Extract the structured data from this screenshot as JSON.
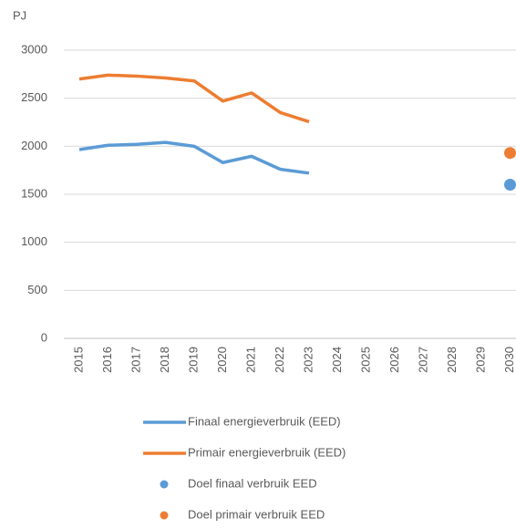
{
  "chart_data": {
    "type": "line",
    "ylabel": "PJ",
    "categories": [
      "2015",
      "2016",
      "2017",
      "2018",
      "2019",
      "2020",
      "2021",
      "2022",
      "2023",
      "2024",
      "2025",
      "2026",
      "2027",
      "2028",
      "2029",
      "2030"
    ],
    "series": [
      {
        "name": "Finaal energieverbruik (EED)",
        "type": "line",
        "color": "#5b9bd5",
        "values": [
          1965,
          2010,
          2020,
          2040,
          2000,
          1830,
          1895,
          1760,
          1720,
          null,
          null,
          null,
          null,
          null,
          null,
          null
        ]
      },
      {
        "name": "Primair energieverbruik (EED)",
        "type": "line",
        "color": "#ed7d31",
        "values": [
          2700,
          2740,
          2730,
          2710,
          2680,
          2470,
          2555,
          2350,
          2255,
          null,
          null,
          null,
          null,
          null,
          null,
          null
        ]
      },
      {
        "name": "Doel finaal verbruik EED",
        "type": "scatter",
        "color": "#5b9bd5",
        "values": [
          null,
          null,
          null,
          null,
          null,
          null,
          null,
          null,
          null,
          null,
          null,
          null,
          null,
          null,
          null,
          1600
        ]
      },
      {
        "name": "Doel primair verbruik EED",
        "type": "scatter",
        "color": "#ed7d31",
        "values": [
          null,
          null,
          null,
          null,
          null,
          null,
          null,
          null,
          null,
          null,
          null,
          null,
          null,
          null,
          null,
          1930
        ]
      }
    ],
    "ylim": [
      0,
      3000
    ],
    "yticks": [
      0,
      500,
      1000,
      1500,
      2000,
      2500,
      3000
    ],
    "grid": true
  }
}
